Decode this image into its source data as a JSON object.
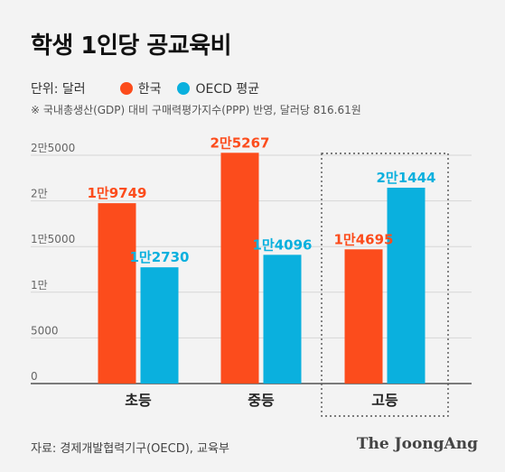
{
  "header": {
    "title": "학생 1인당 공교육비",
    "unit": "단위: 달러",
    "note": "※ 국내총생산(GDP) 대비 구매력평가지수(PPP) 반영, 달러당 816.61원"
  },
  "legend": [
    {
      "label": "한국",
      "color": "#fc4c1c"
    },
    {
      "label": "OECD 평균",
      "color": "#0ab0de"
    }
  ],
  "footer": {
    "source": "자료: 경제개발협력기구(OECD), 교육부",
    "brand": "The JoongAng"
  },
  "chart_data": {
    "type": "bar",
    "categories": [
      "초등",
      "중등",
      "고등"
    ],
    "series": [
      {
        "name": "한국",
        "color": "#fc4c1c",
        "values": [
          19749,
          25267,
          14695
        ],
        "labels": [
          "1만9749",
          "2만5267",
          "1만4695"
        ]
      },
      {
        "name": "OECD 평균",
        "color": "#0ab0de",
        "values": [
          12730,
          14096,
          21444
        ],
        "labels": [
          "1만2730",
          "1만4096",
          "2만1444"
        ]
      }
    ],
    "ylim": [
      0,
      25000
    ],
    "yticks": [
      0,
      5000,
      10000,
      15000,
      20000,
      25000
    ],
    "ytick_labels": [
      "0",
      "5000",
      "1만",
      "1만5000",
      "2만",
      "2만5000"
    ],
    "grid": true,
    "highlight_category": "고등"
  }
}
